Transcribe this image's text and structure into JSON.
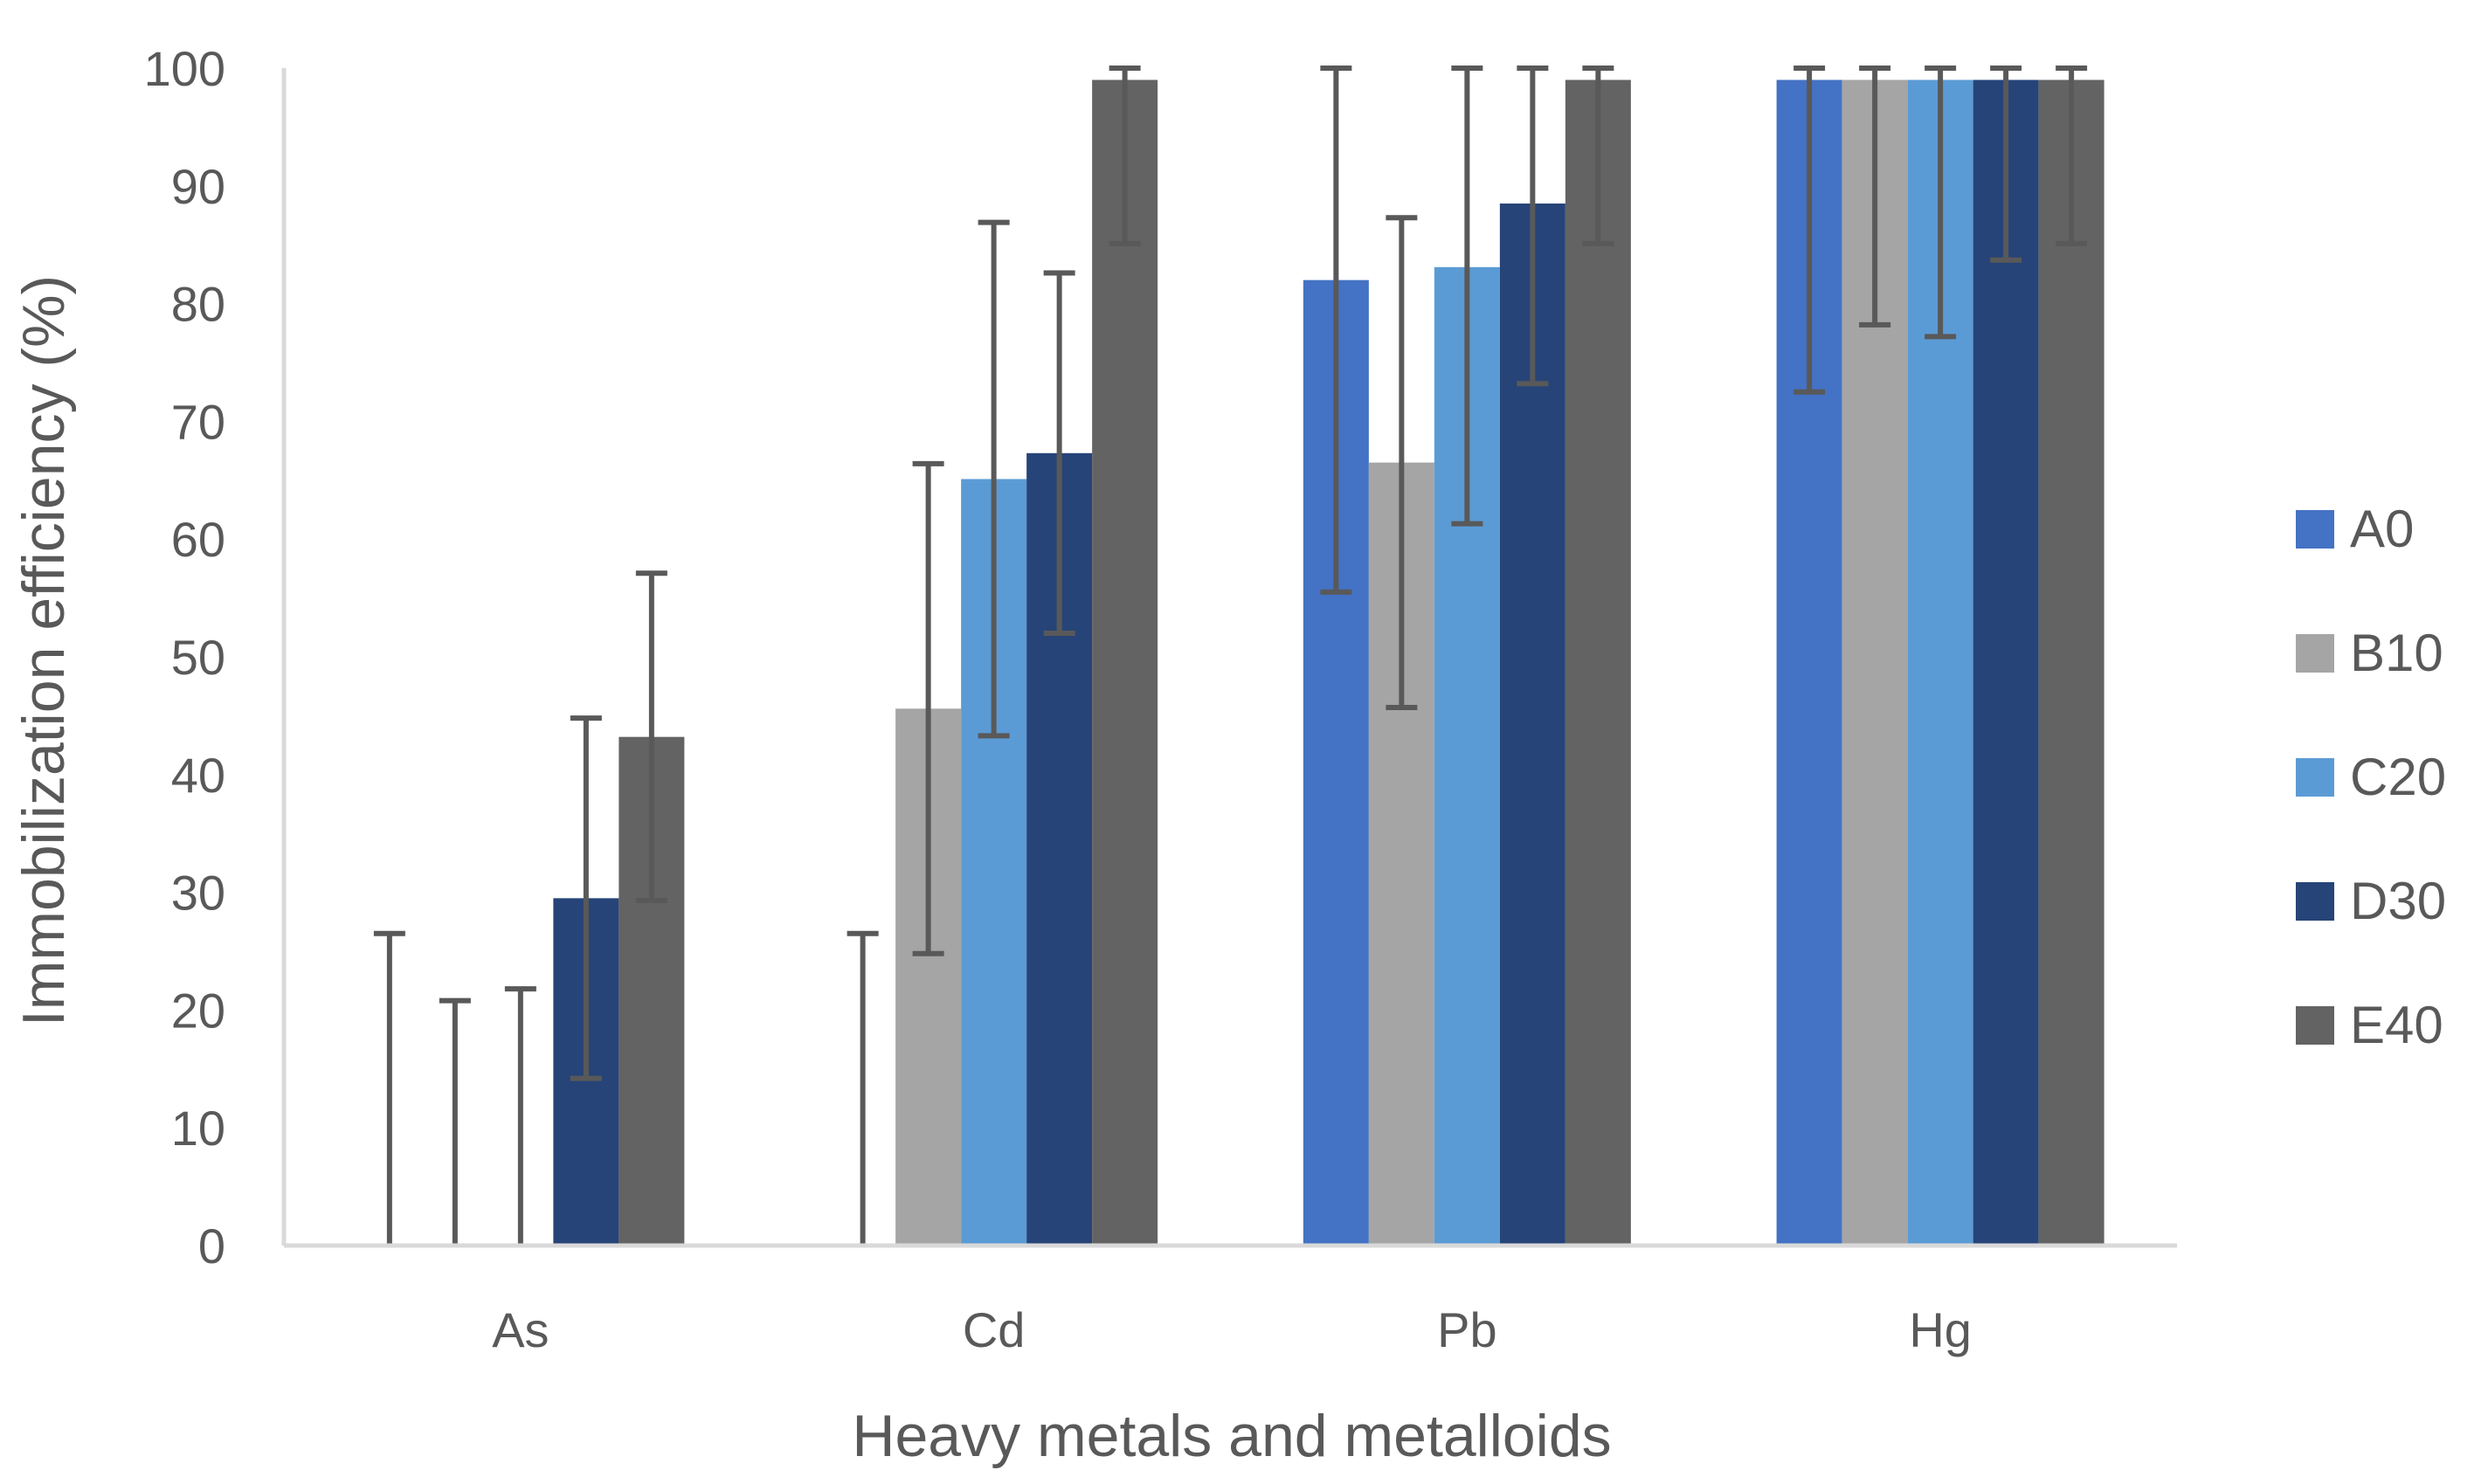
{
  "chart_data": {
    "type": "bar",
    "title": "",
    "xlabel": "Heavy metals and metalloids",
    "ylabel": "Immobilization efficiency (%)",
    "ylim": [
      0,
      100
    ],
    "yticks": [
      0,
      10,
      20,
      30,
      40,
      50,
      60,
      70,
      80,
      90,
      100
    ],
    "categories": [
      "As",
      "Cd",
      "Pb",
      "Hg"
    ],
    "legend_position": "right",
    "grid": false,
    "series": [
      {
        "name": "A0",
        "color": "#4472C4",
        "values": [
          0,
          0,
          82,
          99
        ],
        "error": [
          26.5,
          26.5,
          26.5,
          26.5
        ]
      },
      {
        "name": "B10",
        "color": "#A5A5A5",
        "values": [
          0,
          45.6,
          66.5,
          99
        ],
        "error": [
          20.8,
          20.8,
          20.8,
          20.8
        ]
      },
      {
        "name": "C20",
        "color": "#5B9BD5",
        "values": [
          0,
          65.1,
          83.1,
          99
        ],
        "error": [
          21.8,
          21.8,
          21.8,
          21.8
        ]
      },
      {
        "name": "D30",
        "color": "#264478",
        "values": [
          29.5,
          67.3,
          88.5,
          99
        ],
        "error": [
          15.3,
          15.3,
          15.3,
          15.3
        ]
      },
      {
        "name": "E40",
        "color": "#636363",
        "values": [
          43.2,
          99,
          99,
          99
        ],
        "error": [
          13.9,
          13.9,
          13.9,
          13.9
        ]
      }
    ]
  }
}
